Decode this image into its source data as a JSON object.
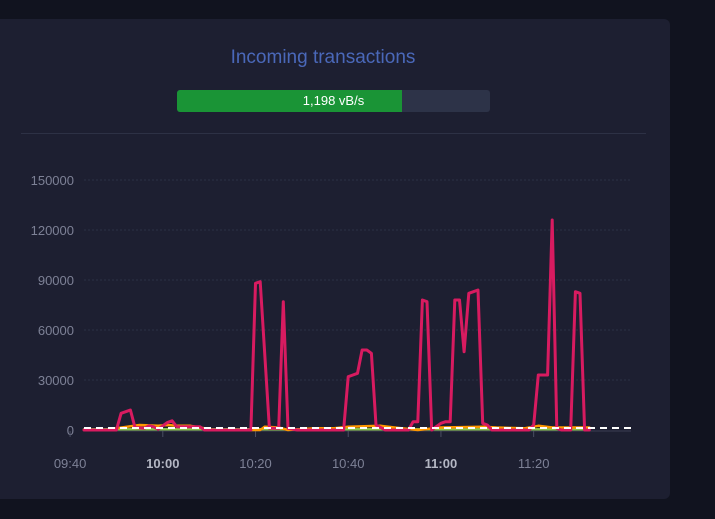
{
  "header": {
    "title": "Incoming transactions"
  },
  "progress": {
    "label": "1,198 vB/s",
    "fraction": 0.72
  },
  "colors": {
    "card": "#1d1f31",
    "title": "#4a68b9",
    "progress_fill": "#1a9436",
    "progress_track": "#2d3348",
    "series_main": "#d81b60",
    "series_low": "#ff9800",
    "series_base": "#8bc34a",
    "reference_line": "#ffffff"
  },
  "chart_data": {
    "type": "line",
    "ylim": [
      0,
      150000
    ],
    "yticks": [
      "0",
      "30000",
      "60000",
      "90000",
      "120000",
      "150000"
    ],
    "ytick_values": [
      0,
      30000,
      60000,
      90000,
      120000,
      150000
    ],
    "xlim_minutes": [
      583,
      701
    ],
    "xticks": [
      {
        "label": "09:40",
        "minute": 580,
        "bold": false
      },
      {
        "label": "10:00",
        "minute": 600,
        "bold": true
      },
      {
        "label": "10:20",
        "minute": 620,
        "bold": false
      },
      {
        "label": "10:40",
        "minute": 640,
        "bold": false
      },
      {
        "label": "11:00",
        "minute": 660,
        "bold": true
      },
      {
        "label": "11:20",
        "minute": 680,
        "bold": false
      }
    ],
    "grid": true,
    "reference_line": 1198,
    "series": [
      {
        "key": "main",
        "points": [
          [
            583,
            0
          ],
          [
            589,
            0
          ],
          [
            590,
            0
          ],
          [
            591,
            10000
          ],
          [
            592,
            11000
          ],
          [
            593,
            12000
          ],
          [
            594,
            1500
          ],
          [
            596,
            1000
          ],
          [
            597,
            2500
          ],
          [
            598,
            2000
          ],
          [
            599,
            500
          ],
          [
            600,
            2500
          ],
          [
            601,
            4500
          ],
          [
            602,
            5500
          ],
          [
            603,
            2000
          ],
          [
            605,
            2000
          ],
          [
            608,
            2000
          ],
          [
            609,
            0
          ],
          [
            613,
            0
          ],
          [
            615,
            0
          ],
          [
            619,
            0
          ],
          [
            620,
            88000
          ],
          [
            621,
            89000
          ],
          [
            623,
            1000
          ],
          [
            625,
            1000
          ],
          [
            626,
            77000
          ],
          [
            627,
            1000
          ],
          [
            629,
            0
          ],
          [
            634,
            0
          ],
          [
            637,
            0
          ],
          [
            638,
            0
          ],
          [
            639,
            0
          ],
          [
            640,
            32000
          ],
          [
            641,
            33000
          ],
          [
            642,
            34000
          ],
          [
            643,
            48000
          ],
          [
            644,
            48000
          ],
          [
            645,
            46000
          ],
          [
            646,
            3000
          ],
          [
            648,
            0
          ],
          [
            650,
            0
          ],
          [
            652,
            0
          ],
          [
            653,
            0
          ],
          [
            654,
            5000
          ],
          [
            655,
            5000
          ],
          [
            656,
            78000
          ],
          [
            657,
            77000
          ],
          [
            658,
            0
          ],
          [
            660,
            4000
          ],
          [
            661,
            5000
          ],
          [
            662,
            5000
          ],
          [
            663,
            78000
          ],
          [
            664,
            78000
          ],
          [
            665,
            47000
          ],
          [
            666,
            82000
          ],
          [
            667,
            83000
          ],
          [
            668,
            84000
          ],
          [
            669,
            4000
          ],
          [
            670,
            3000
          ],
          [
            671,
            0
          ],
          [
            675,
            0
          ],
          [
            677,
            0
          ],
          [
            679,
            0
          ],
          [
            680,
            3000
          ],
          [
            681,
            33000
          ],
          [
            682,
            33000
          ],
          [
            683,
            33000
          ],
          [
            684,
            126000
          ],
          [
            685,
            1000
          ],
          [
            686,
            0
          ],
          [
            688,
            0
          ],
          [
            689,
            83000
          ],
          [
            690,
            82000
          ],
          [
            691,
            0
          ],
          [
            692,
            0
          ]
        ]
      },
      {
        "key": "low",
        "points": [
          [
            583,
            0
          ],
          [
            589,
            0
          ],
          [
            590,
            1000
          ],
          [
            595,
            3000
          ],
          [
            599,
            2500
          ],
          [
            601,
            3000
          ],
          [
            603,
            2500
          ],
          [
            606,
            2500
          ],
          [
            608,
            1500
          ],
          [
            611,
            0
          ],
          [
            621,
            0
          ],
          [
            622,
            2000
          ],
          [
            625,
            1500
          ],
          [
            627,
            0
          ],
          [
            633,
            1000
          ],
          [
            637,
            1000
          ],
          [
            640,
            2000
          ],
          [
            647,
            2500
          ],
          [
            650,
            1500
          ],
          [
            655,
            0
          ],
          [
            660,
            1500
          ],
          [
            669,
            2000
          ],
          [
            672,
            1500
          ],
          [
            678,
            1000
          ],
          [
            681,
            2500
          ],
          [
            684,
            1500
          ],
          [
            689,
            1500
          ],
          [
            692,
            1500
          ]
        ]
      },
      {
        "key": "base",
        "points": [
          [
            583,
            500
          ],
          [
            692,
            500
          ]
        ]
      }
    ]
  }
}
